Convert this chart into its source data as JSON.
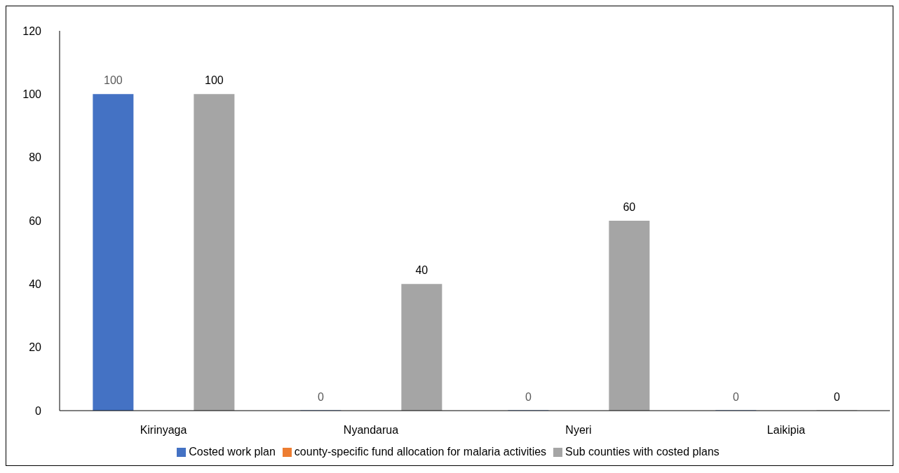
{
  "chart_data": {
    "type": "bar",
    "categories": [
      "Kirinyaga",
      "Nyandarua",
      "Nyeri",
      "Laikipia"
    ],
    "series": [
      {
        "name": "Costed work plan",
        "color": "#4472c4",
        "values": [
          100,
          0,
          0,
          0
        ]
      },
      {
        "name": "county-specific fund allocation for malaria activities",
        "color": "#ed7d31",
        "values": [
          null,
          null,
          null,
          null
        ]
      },
      {
        "name": "Sub counties with costed plans",
        "color": "#a5a5a5",
        "values": [
          100,
          40,
          60,
          0
        ]
      }
    ],
    "ylim": [
      0,
      120
    ],
    "yticks": [
      0,
      20,
      40,
      60,
      80,
      100,
      120
    ],
    "grid": false,
    "legend": "bottom",
    "data_labels": true
  }
}
